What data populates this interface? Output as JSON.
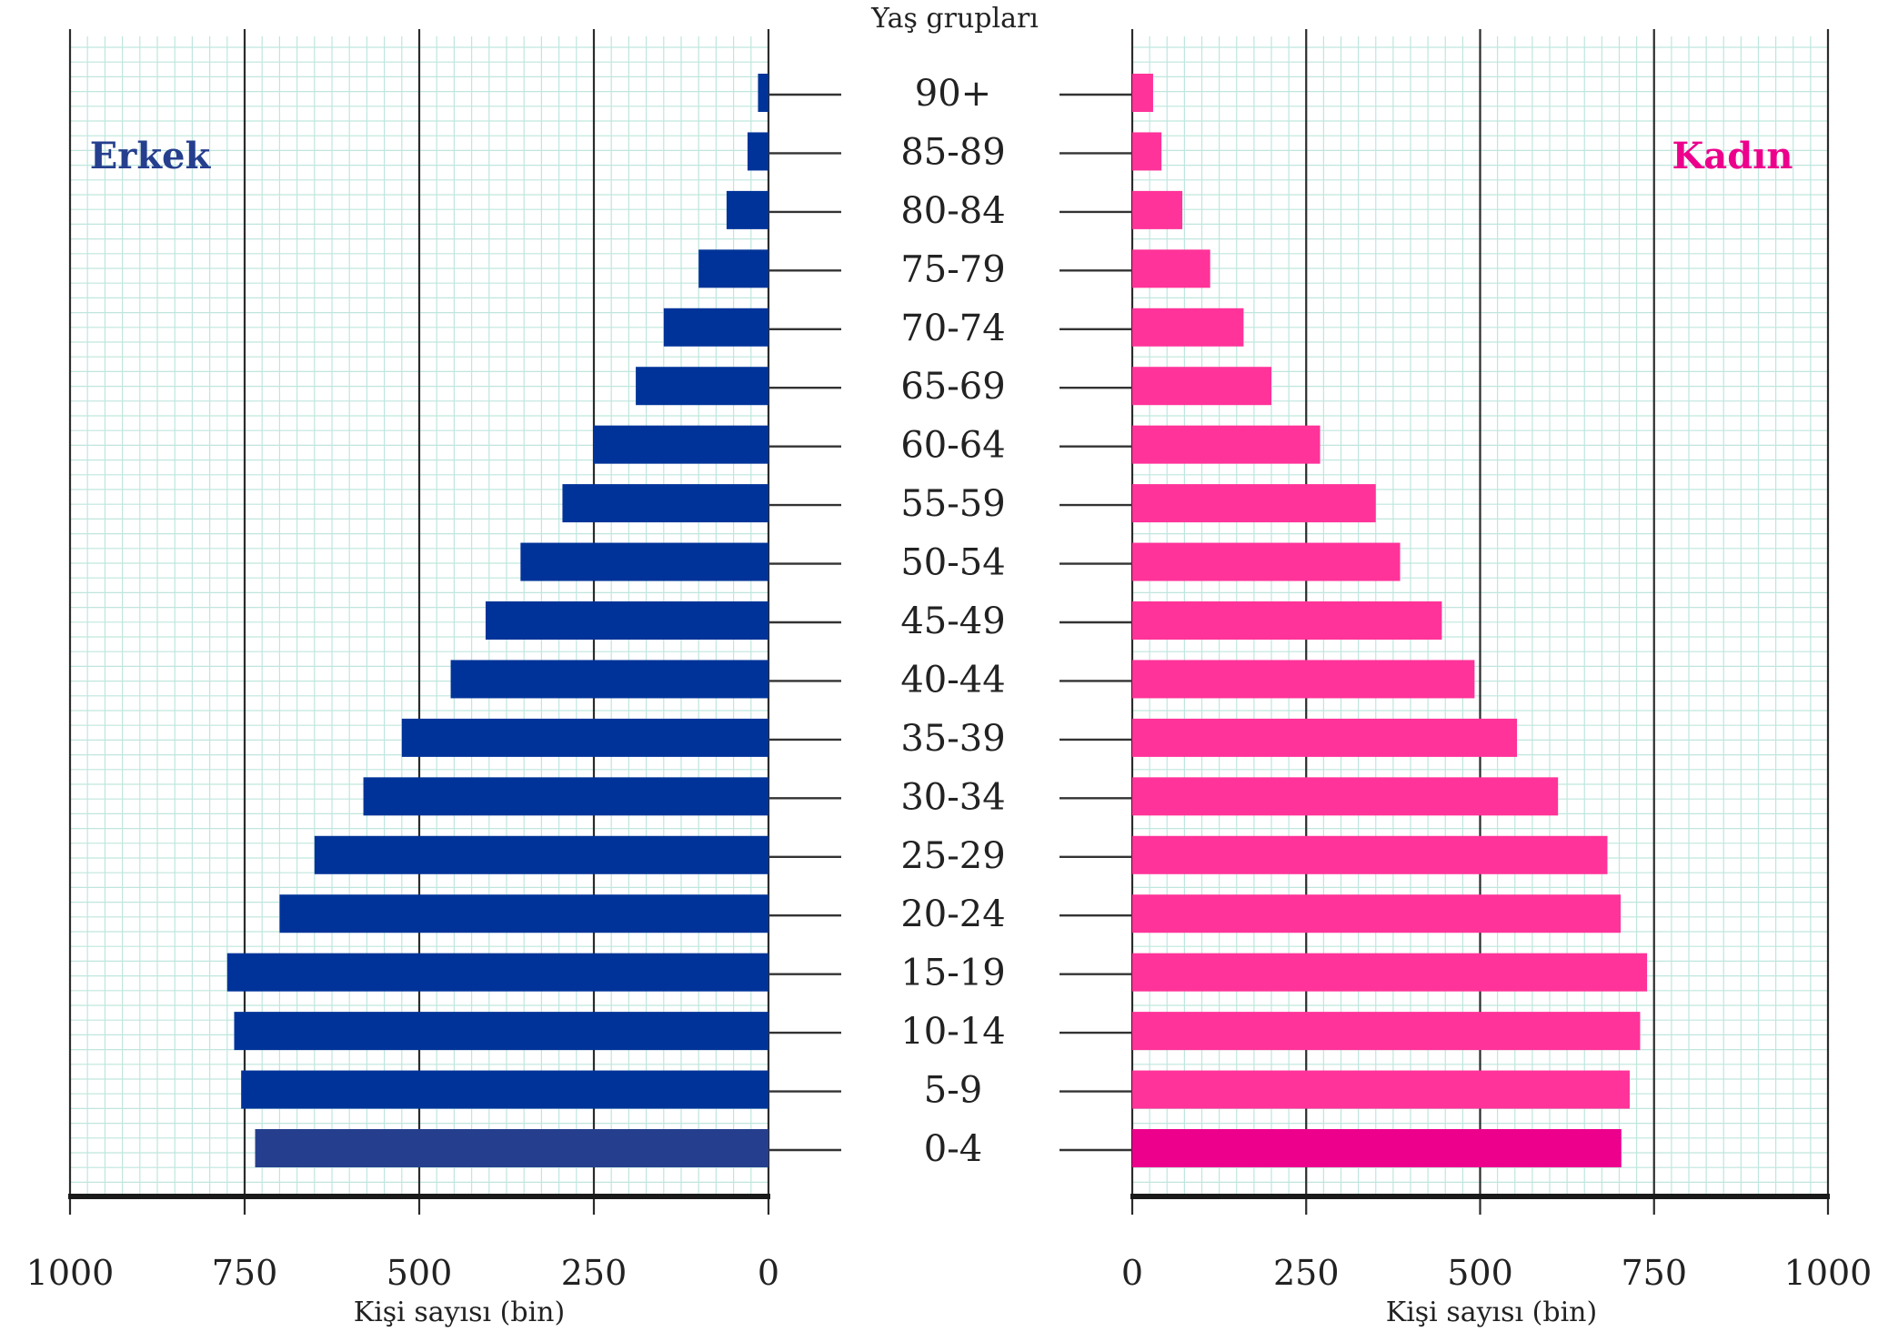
{
  "chart_data": {
    "type": "bar",
    "subtype": "population-pyramid",
    "categories": [
      "90+",
      "85-89",
      "80-84",
      "75-79",
      "70-74",
      "65-69",
      "60-64",
      "55-59",
      "50-54",
      "45-49",
      "40-44",
      "35-39",
      "30-34",
      "25-29",
      "20-24",
      "15-19",
      "10-14",
      "5-9",
      "0-4"
    ],
    "series": [
      {
        "name": "Erkek",
        "side": "left",
        "color": "#003399",
        "highlight_color": "#253f8e",
        "values": [
          15,
          30,
          60,
          100,
          150,
          190,
          250,
          295,
          355,
          405,
          455,
          525,
          580,
          650,
          700,
          775,
          765,
          755,
          735
        ]
      },
      {
        "name": "Kadın",
        "side": "right",
        "color": "#ff3399",
        "highlight_color": "#ec008c",
        "values": [
          30,
          42,
          72,
          112,
          160,
          200,
          270,
          350,
          385,
          445,
          492,
          553,
          612,
          683,
          702,
          740,
          730,
          715,
          703
        ]
      }
    ],
    "center_title": "Yaş grupları",
    "xlabel_left": "Kişi sayısı (bin)",
    "xlabel_right": "Kişi sayısı (bin)",
    "xlim": [
      0,
      1000
    ],
    "xticks": [
      0,
      250,
      500,
      750,
      1000
    ],
    "grid": true,
    "legend": "none"
  }
}
